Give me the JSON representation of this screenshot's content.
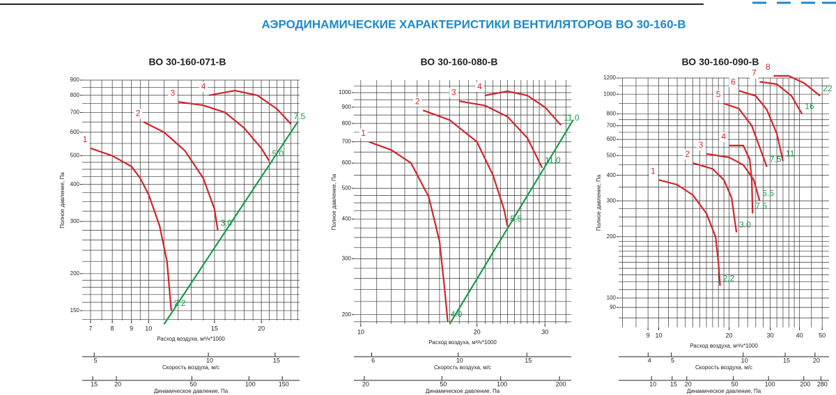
{
  "header": {
    "title": "АЭРОДИНАМИЧЕСКИЕ ХАРАКТЕРИСТИКИ ВЕНТИЛЯТОРОВ ВО 30-160-В"
  },
  "chart_data": [
    {
      "type": "line",
      "title": "ВО 30-160-071-В",
      "x_label": "Расход воздуха, м³/ч*1000",
      "y_label": "Полное давление, Па",
      "x_log": true,
      "y_log": true,
      "grid": true,
      "xlim": [
        6.65,
        25.3
      ],
      "ylim": [
        139,
        900
      ],
      "xticks": [
        7,
        8,
        9,
        10,
        15,
        20
      ],
      "yticks": [
        150,
        200,
        300,
        400,
        500,
        600,
        700,
        800,
        900
      ],
      "x_grid": [
        7,
        7.5,
        8,
        8.5,
        9,
        9.5,
        10,
        11,
        12,
        13,
        14,
        15,
        16,
        17,
        18,
        19,
        20,
        21,
        22,
        23,
        24,
        25
      ],
      "y_grid": [
        140,
        150,
        160,
        170,
        180,
        190,
        200,
        220,
        240,
        260,
        280,
        300,
        325,
        350,
        375,
        400,
        425,
        450,
        475,
        500,
        550,
        600,
        650,
        700,
        750,
        800,
        850,
        900
      ],
      "series": [
        {
          "name": "1",
          "color": "#d2232a",
          "power_label": "2.2",
          "x": [
            7,
            8,
            9,
            9.5,
            10,
            10.7,
            11.2,
            11.5
          ],
          "values": [
            530,
            500,
            460,
            420,
            370,
            290,
            220,
            150
          ]
        },
        {
          "name": "2",
          "color": "#d2232a",
          "power_label": "3.0",
          "x": [
            9.7,
            11,
            12.5,
            14,
            15,
            15.3
          ],
          "values": [
            650,
            600,
            520,
            420,
            330,
            280
          ]
        },
        {
          "name": "3",
          "color": "#d2232a",
          "power_label": "5.0",
          "x": [
            12,
            14,
            16,
            18,
            20,
            21
          ],
          "values": [
            760,
            740,
            700,
            620,
            530,
            480
          ]
        },
        {
          "name": "4",
          "color": "#d2232a",
          "power_label": "7.5",
          "x": [
            14.5,
            17,
            19.5,
            22,
            24
          ],
          "values": [
            800,
            830,
            800,
            720,
            640
          ]
        },
        {
          "color": "#1a9a4a",
          "x": [
            11,
            25
          ],
          "values": [
            135,
            650
          ]
        }
      ],
      "velocity_axis": {
        "label": "Скорость воздуха, м/с",
        "lim": [
          4.65,
          17.4
        ],
        "ticks": [
          5,
          10,
          15
        ]
      },
      "dynamic_axis": {
        "label": "Динамическое давление, Па",
        "lim": [
          13.2,
          185
        ],
        "ticks": [
          15,
          20,
          50,
          100,
          150
        ]
      }
    },
    {
      "type": "line",
      "title": "ВО 30-160-080-В",
      "x_label": "Расход воздуха, м³/ч*1000",
      "y_label": "Полное давление, Па",
      "x_log": true,
      "y_log": true,
      "grid": true,
      "xlim": [
        9.6,
        35.1
      ],
      "ylim": [
        187,
        1095
      ],
      "xticks": [
        10,
        20,
        30
      ],
      "yticks": [
        200,
        300,
        400,
        500,
        600,
        700,
        800,
        900,
        1000
      ],
      "x_grid": [
        10,
        11,
        12,
        13,
        14,
        15,
        16,
        17,
        18,
        19,
        20,
        21,
        22,
        23,
        24,
        25,
        26,
        27,
        28,
        29,
        30,
        32,
        34
      ],
      "y_grid": [
        190,
        200,
        220,
        240,
        260,
        280,
        300,
        325,
        350,
        375,
        400,
        425,
        450,
        475,
        500,
        550,
        600,
        650,
        700,
        750,
        800,
        850,
        900,
        950,
        1000,
        1050
      ],
      "series": [
        {
          "name": "1",
          "color": "#d2232a",
          "power_label": "4.0",
          "x": [
            10.5,
            12,
            13.5,
            15,
            16,
            16.5,
            16.8
          ],
          "values": [
            700,
            660,
            600,
            470,
            340,
            240,
            190
          ]
        },
        {
          "name": "2",
          "color": "#d2232a",
          "power_label": "5.5",
          "x": [
            14.5,
            17,
            20,
            22,
            23.5,
            24
          ],
          "values": [
            880,
            820,
            700,
            550,
            430,
            380
          ]
        },
        {
          "name": "3",
          "color": "#d2232a",
          "power_label": "11.0",
          "x": [
            18,
            21,
            24,
            27,
            29.5
          ],
          "values": [
            940,
            910,
            840,
            720,
            580
          ]
        },
        {
          "name": "4",
          "color": "#d2232a",
          "power_label": "11.0",
          "x": [
            21,
            24,
            27,
            30,
            33
          ],
          "values": [
            980,
            1010,
            980,
            900,
            790
          ]
        },
        {
          "color": "#1a9a4a",
          "x": [
            17,
            35.5
          ],
          "values": [
            187,
            820
          ]
        }
      ],
      "velocity_axis": {
        "label": "Скорость воздуха, м/с",
        "lim": [
          5.4,
          19.5
        ],
        "ticks": [
          6,
          10,
          15
        ]
      },
      "dynamic_axis": {
        "label": "Динамическое давление, Па",
        "lim": [
          17.7,
          230
        ],
        "ticks": [
          20,
          50,
          100,
          200
        ]
      }
    },
    {
      "type": "line",
      "title": "ВО 30-160-090-В",
      "x_label": "Расход воздуха, м³/ч*1000",
      "y_label": "Полное давление, Па",
      "x_log": true,
      "y_log": true,
      "grid": true,
      "xlim": [
        6.74,
        53.5
      ],
      "ylim": [
        71.8,
        1200
      ],
      "xticks": [
        9,
        10,
        20,
        30,
        40,
        50
      ],
      "yticks": [
        90,
        100,
        200,
        300,
        400,
        500,
        600,
        700,
        800,
        1000,
        1200
      ],
      "x_grid": [
        7,
        8,
        9,
        10,
        11,
        12,
        13,
        14,
        15,
        16,
        17,
        18,
        19,
        20,
        22,
        24,
        26,
        28,
        30,
        32,
        34,
        36,
        38,
        40,
        45,
        50
      ],
      "y_grid": [
        80,
        90,
        100,
        110,
        120,
        130,
        140,
        150,
        160,
        170,
        180,
        190,
        200,
        225,
        250,
        275,
        300,
        350,
        400,
        450,
        500,
        550,
        600,
        650,
        700,
        750,
        800,
        900,
        1000,
        1100,
        1200
      ],
      "series": [
        {
          "name": "1",
          "color": "#d2232a",
          "power_label": "2.2",
          "x": [
            10,
            12,
            14,
            16,
            17.5,
            18,
            18.3
          ],
          "values": [
            380,
            360,
            320,
            260,
            200,
            150,
            115
          ]
        },
        {
          "name": "2",
          "color": "#d2232a",
          "power_label": "3.0",
          "x": [
            14,
            17,
            19,
            20.5,
            21.5
          ],
          "values": [
            460,
            430,
            380,
            310,
            210
          ]
        },
        {
          "name": "3",
          "color": "#d2232a",
          "power_label": "5.5",
          "x": [
            16,
            20,
            23,
            25.5,
            27
          ],
          "values": [
            510,
            490,
            450,
            380,
            300
          ]
        },
        {
          "name": "4",
          "color": "#d2232a",
          "power_label": "7.5",
          "x": [
            20,
            23,
            24.5,
            25,
            25.2
          ],
          "values": [
            560,
            560,
            480,
            380,
            260
          ]
        },
        {
          "name": "5",
          "color": "#d2232a",
          "power_label": "7.5",
          "x": [
            19,
            22,
            25,
            27.5,
            29
          ],
          "values": [
            900,
            850,
            700,
            520,
            440
          ]
        },
        {
          "name": "6",
          "color": "#d2232a",
          "power_label": "11",
          "x": [
            22,
            26,
            29,
            32,
            34
          ],
          "values": [
            1040,
            980,
            840,
            640,
            470
          ]
        },
        {
          "name": "7",
          "color": "#d2232a",
          "power_label": "16",
          "x": [
            27,
            32,
            37,
            41
          ],
          "values": [
            1150,
            1120,
            980,
            800
          ]
        },
        {
          "name": "8",
          "color": "#d2232a",
          "power_label": "22",
          "x": [
            31,
            36,
            42,
            49
          ],
          "values": [
            1230,
            1230,
            1130,
            980
          ]
        }
      ],
      "velocity_axis": {
        "label": "Скорость воздуха, м/с",
        "lim": [
          3.01,
          22.9
        ],
        "ticks": [
          4,
          5,
          10,
          15,
          20
        ]
      },
      "dynamic_axis": {
        "label": "Динамическое давление, Па",
        "lim": [
          5.23,
          329
        ],
        "ticks": [
          10,
          15,
          20,
          50,
          100,
          200,
          280
        ]
      }
    }
  ]
}
